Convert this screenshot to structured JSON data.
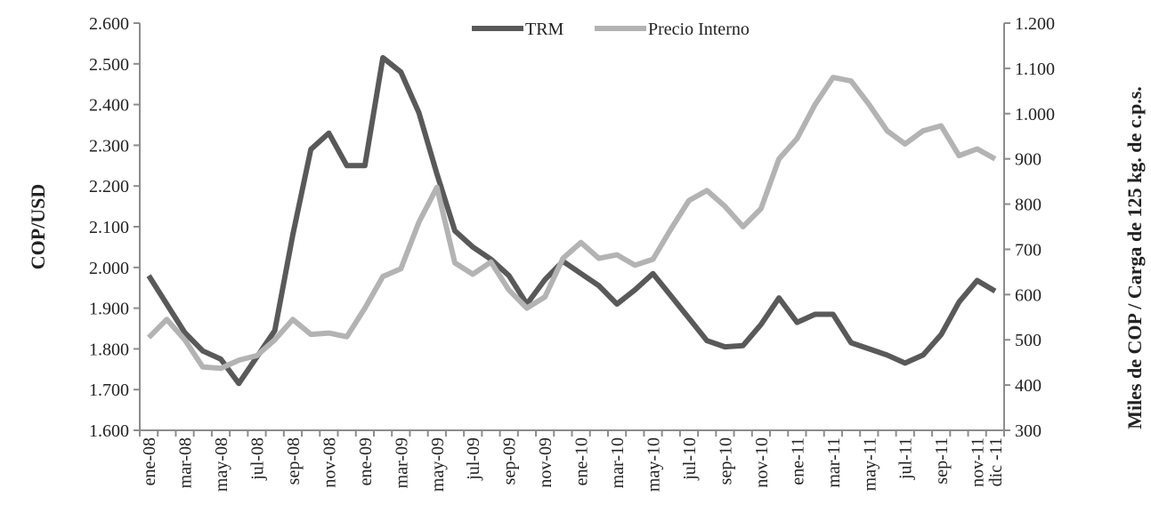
{
  "chart_data": {
    "type": "line",
    "categories": [
      "ene-08",
      null,
      "mar-08",
      null,
      "may-08",
      null,
      "jul-08",
      null,
      "sep-08",
      null,
      "nov-08",
      null,
      "ene-09",
      null,
      "mar-09",
      null,
      "may-09",
      null,
      "jul-09",
      null,
      "sep-09",
      null,
      "nov-09",
      null,
      "ene-10",
      null,
      "mar-10",
      null,
      "may-10",
      null,
      "jul-10",
      null,
      "sep-10",
      null,
      "nov-10",
      null,
      "ene-11",
      null,
      "mar-11",
      null,
      "may-11",
      null,
      "jul-11",
      null,
      "sep-11",
      null,
      "nov-11",
      "dic -11"
    ],
    "series": [
      {
        "name": "TRM",
        "color": "#595959",
        "axis": "y",
        "values": [
          1980,
          1910,
          1840,
          1795,
          1775,
          1715,
          1780,
          1845,
          2080,
          2290,
          2330,
          2250,
          2250,
          2515,
          2480,
          2380,
          2230,
          2090,
          2050,
          2020,
          1980,
          1910,
          1970,
          2015,
          1985,
          1955,
          1910,
          1945,
          1985,
          1930,
          1875,
          1820,
          1805,
          1808,
          1860,
          1925,
          1865,
          1885,
          1885,
          1815,
          1800,
          1785,
          1765,
          1785,
          1835,
          1915,
          1968,
          1942
        ]
      },
      {
        "name": "Precio Interno",
        "color": "#b3b3b3",
        "axis": "y2",
        "values": [
          505,
          545,
          500,
          440,
          437,
          455,
          465,
          500,
          545,
          512,
          515,
          507,
          570,
          640,
          657,
          760,
          837,
          670,
          645,
          672,
          610,
          570,
          595,
          680,
          715,
          680,
          688,
          665,
          678,
          745,
          808,
          830,
          795,
          750,
          790,
          900,
          945,
          1020,
          1080,
          1072,
          1020,
          962,
          933,
          962,
          973,
          907,
          922,
          900
        ]
      }
    ],
    "ylabel": "COP/USD",
    "y2label": "Miles de COP / Carga de 125 kg. de c.p.s.",
    "ylim": [
      1600,
      2600
    ],
    "yticks": [
      {
        "value": 1600,
        "label": "1.600"
      },
      {
        "value": 1700,
        "label": "1.700"
      },
      {
        "value": 1800,
        "label": "1.800"
      },
      {
        "value": 1900,
        "label": "1.900"
      },
      {
        "value": 2000,
        "label": "2.000"
      },
      {
        "value": 2100,
        "label": "2.100"
      },
      {
        "value": 2200,
        "label": "2.200"
      },
      {
        "value": 2300,
        "label": "2.300"
      },
      {
        "value": 2400,
        "label": "2.400"
      },
      {
        "value": 2500,
        "label": "2.500"
      },
      {
        "value": 2600,
        "label": "2.600"
      }
    ],
    "y2lim": [
      300,
      1200
    ],
    "y2ticks": [
      300,
      400,
      500,
      600,
      700,
      800,
      900,
      {
        "value": 1000,
        "label": "1.000"
      },
      {
        "value": 1100,
        "label": "1.100"
      },
      {
        "value": 1200,
        "label": "1.200"
      }
    ],
    "legend": "top"
  }
}
